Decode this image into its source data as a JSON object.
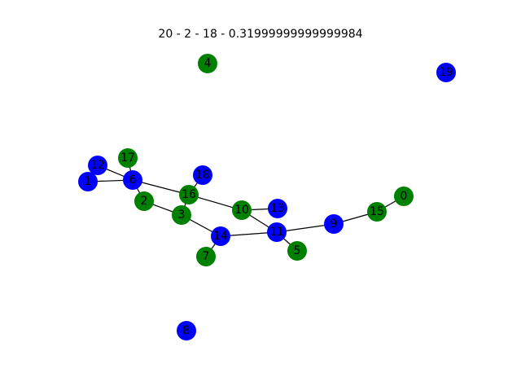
{
  "title": "20 - 2 - 18 - 0.31999999999999984",
  "colors": {
    "blue": "#0000ff",
    "green": "#008000",
    "edge": "#000000"
  },
  "nodes": [
    {
      "id": "0",
      "color": "green"
    },
    {
      "id": "1",
      "color": "blue"
    },
    {
      "id": "2",
      "color": "green"
    },
    {
      "id": "3",
      "color": "green"
    },
    {
      "id": "4",
      "color": "green"
    },
    {
      "id": "5",
      "color": "green"
    },
    {
      "id": "6",
      "color": "blue"
    },
    {
      "id": "7",
      "color": "green"
    },
    {
      "id": "8",
      "color": "blue"
    },
    {
      "id": "9",
      "color": "blue"
    },
    {
      "id": "10",
      "color": "green"
    },
    {
      "id": "11",
      "color": "blue"
    },
    {
      "id": "12",
      "color": "blue"
    },
    {
      "id": "13",
      "color": "blue"
    },
    {
      "id": "14",
      "color": "blue"
    },
    {
      "id": "15",
      "color": "green"
    },
    {
      "id": "16",
      "color": "green"
    },
    {
      "id": "17",
      "color": "green"
    },
    {
      "id": "18",
      "color": "blue"
    },
    {
      "id": "19",
      "color": "blue"
    }
  ],
  "edges": [
    [
      "12",
      "6"
    ],
    [
      "1",
      "6"
    ],
    [
      "17",
      "6"
    ],
    [
      "6",
      "2"
    ],
    [
      "6",
      "16"
    ],
    [
      "2",
      "3"
    ],
    [
      "3",
      "16"
    ],
    [
      "3",
      "14"
    ],
    [
      "16",
      "18"
    ],
    [
      "16",
      "10"
    ],
    [
      "10",
      "13"
    ],
    [
      "10",
      "11"
    ],
    [
      "14",
      "11"
    ],
    [
      "14",
      "7"
    ],
    [
      "11",
      "5"
    ],
    [
      "11",
      "9"
    ],
    [
      "9",
      "15"
    ],
    [
      "15",
      "0"
    ]
  ]
}
